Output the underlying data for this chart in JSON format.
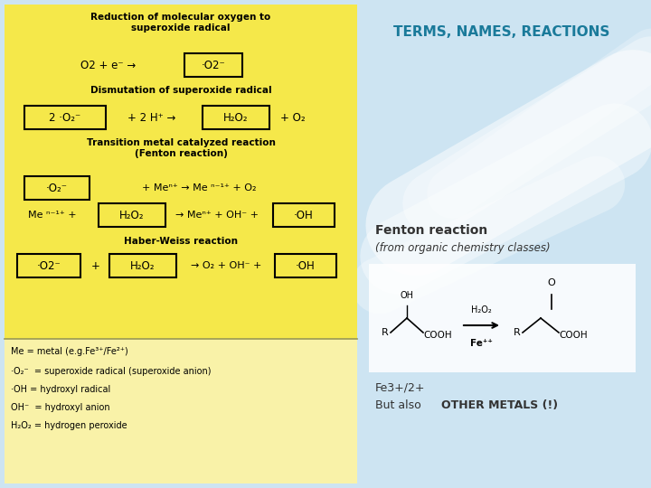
{
  "title": "TERMS, NAMES, REACTIONS",
  "title_color": "#1a7a9a",
  "title_fontsize": 11,
  "bg_color": "#d8eaf5",
  "left_panel_bg": "#f5e84a",
  "left_panel_bg2": "#f9f2a8",
  "fenton_label": "Fenton reaction",
  "fenton_sublabel": "(from organic chemistry classes)",
  "fe_label1": "Fe3+/2+",
  "fe_label2_bold": "OTHER METALS (!)",
  "reaction1_title": "Reduction of molecular oxygen to\nsuperoxide radical",
  "reaction2_title": "Dismutation of superoxide radical",
  "reaction3_title": "Transition metal catalyzed reaction\n(Fenton reaction)",
  "reaction4_title": "Haber-Weiss reaction",
  "legend_me": "Me = metal (e.g.Fe³⁺/Fe²⁺)",
  "legend_o2": "·O₂⁻  = superoxide radical (superoxide anion)",
  "legend_oh1": "·OH = hydroxyl radical",
  "legend_oh2": "OH⁻  = hydroxyl anion",
  "legend_h2o2": "H₂O₂ = hydrogen peroxide"
}
